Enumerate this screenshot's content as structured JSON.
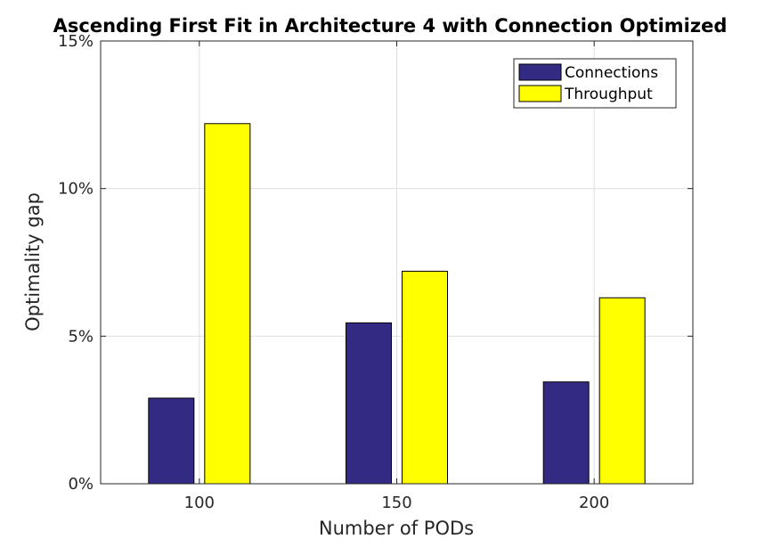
{
  "chart_data": {
    "type": "bar",
    "title": "Ascending First Fit in Architecture 4 with Connection Optimized",
    "xlabel": "Number of PODs",
    "ylabel": "Optimality gap",
    "categories": [
      "100",
      "150",
      "200"
    ],
    "series": [
      {
        "name": "Connections",
        "values": [
          2.9,
          5.45,
          3.45
        ],
        "color": "#332a84"
      },
      {
        "name": "Throughput",
        "values": [
          12.2,
          7.2,
          6.3
        ],
        "color": "#ffff00"
      }
    ],
    "ylim": [
      0,
      15
    ],
    "yticks": [
      0,
      5,
      10,
      15
    ],
    "ytick_labels": [
      "0%",
      "5%",
      "10%",
      "15%"
    ],
    "grid": true,
    "legend_position": "top-right"
  }
}
